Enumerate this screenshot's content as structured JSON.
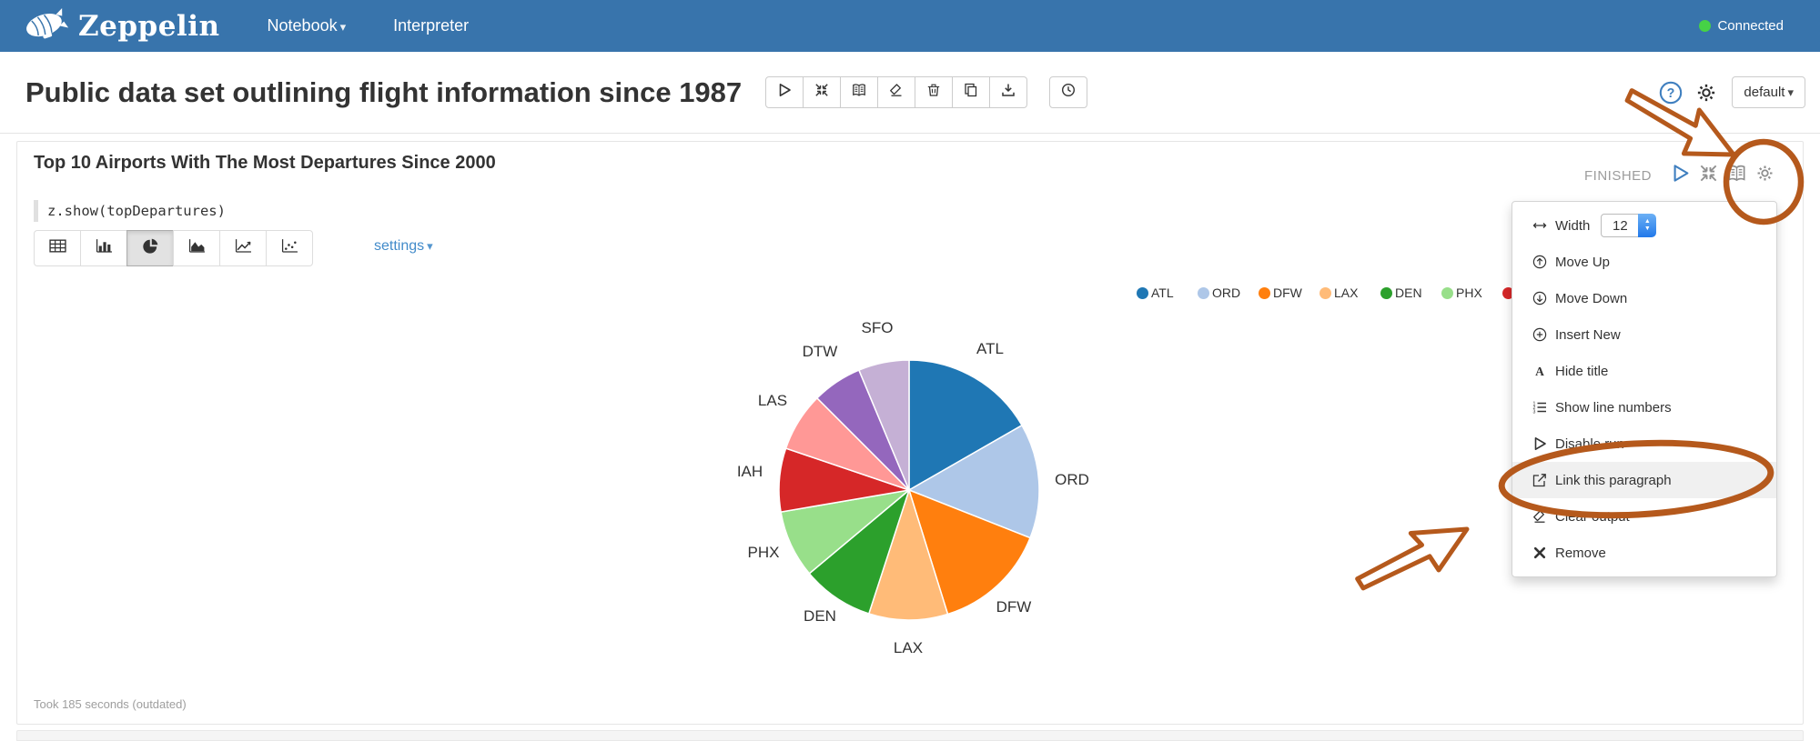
{
  "navbar": {
    "brand": "Zeppelin",
    "items": [
      {
        "label": "Notebook",
        "has_caret": true
      },
      {
        "label": "Interpreter",
        "has_caret": false
      }
    ],
    "status": {
      "label": "Connected",
      "color": "#46d246"
    }
  },
  "header": {
    "title": "Public data set outlining flight information since 1987",
    "toolbar": [
      "run-all-icon",
      "toggle-code-icon",
      "toggle-output-icon",
      "clear-all-output-icon",
      "trash-icon",
      "clone-note-icon",
      "export-note-icon"
    ],
    "scheduler": "clock-icon",
    "right_icons": [
      "question-icon",
      "gear-icon"
    ],
    "default_label": "default"
  },
  "paragraph": {
    "title": "Top 10 Airports With The Most Departures Since 2000",
    "code": "z.show(topDepartures)",
    "status": "FINISHED",
    "status_icons": [
      {
        "id": "run-paragraph",
        "icon": "play-icon",
        "color": "#3f7fbf"
      },
      {
        "id": "collapse-paragraph",
        "icon": "shrink-icon",
        "color": "#8e8e8e"
      },
      {
        "id": "toggle-output",
        "icon": "book-icon",
        "color": "#8e8e8e"
      },
      {
        "id": "paragraph-settings",
        "icon": "gear-icon",
        "color": "#8e8e8e"
      }
    ],
    "chart_types": [
      {
        "id": "table",
        "icon": "table-icon",
        "selected": false
      },
      {
        "id": "bar",
        "icon": "bar-chart-icon",
        "selected": false
      },
      {
        "id": "pie",
        "icon": "pie-chart-icon",
        "selected": true
      },
      {
        "id": "area",
        "icon": "area-chart-icon",
        "selected": false
      },
      {
        "id": "line",
        "icon": "line-chart-icon",
        "selected": false
      },
      {
        "id": "scatter",
        "icon": "scatter-chart-icon",
        "selected": false
      }
    ],
    "settings_label": "settings",
    "footer": "Took 185 seconds (outdated)"
  },
  "chart_data": {
    "type": "pie",
    "title": "Top 10 Airports With The Most Departures Since 2000",
    "categories": [
      "ATL",
      "ORD",
      "DFW",
      "LAX",
      "DEN",
      "PHX",
      "IAH",
      "LAS",
      "DTW",
      "SFO"
    ],
    "values": [
      16.7,
      14.3,
      14.2,
      9.8,
      8.9,
      8.4,
      7.9,
      7.3,
      6.2,
      6.3
    ],
    "values_note": "percent of total, estimated from arc angles",
    "colors": [
      "#1f77b4",
      "#aec7e8",
      "#ff7f0e",
      "#ffbb78",
      "#2ca02c",
      "#98df8a",
      "#d62728",
      "#ff9896",
      "#9467bd",
      "#c5b0d5"
    ],
    "legend_position": "top-right",
    "legend_partially_hidden_by_menu_after": "PHX"
  },
  "menu": {
    "width_value": "12",
    "items": [
      {
        "id": "width",
        "icon": "width-icon",
        "label": "Width",
        "control": "stepper"
      },
      {
        "id": "move-up",
        "icon": "move-up-icon",
        "label": "Move Up"
      },
      {
        "id": "move-down",
        "icon": "move-down-icon",
        "label": "Move Down"
      },
      {
        "id": "insert-new",
        "icon": "insert-new-icon",
        "label": "Insert New"
      },
      {
        "id": "hide-title",
        "icon": "hide-title-icon",
        "label": "Hide title"
      },
      {
        "id": "show-line-numbers",
        "icon": "line-numbers-icon",
        "label": "Show line numbers"
      },
      {
        "id": "disable-run",
        "icon": "disable-run-icon",
        "label": "Disable run"
      },
      {
        "id": "link-this-paragraph",
        "icon": "link-paragraph-icon",
        "label": "Link this paragraph",
        "highlighted": true
      },
      {
        "id": "clear-output",
        "icon": "clear-output-icon",
        "label": "Clear output"
      },
      {
        "id": "remove",
        "icon": "remove-icon",
        "label": "Remove"
      }
    ]
  },
  "annotations": {
    "color": "#b5591c",
    "items": [
      {
        "type": "arrow",
        "points_to": "paragraph-settings-gear"
      },
      {
        "type": "circle",
        "around": "paragraph-settings-gear"
      },
      {
        "type": "arrow",
        "points_to": "menu-item-link-this-paragraph"
      },
      {
        "type": "ellipse",
        "around": "menu-item-link-this-paragraph"
      }
    ]
  }
}
